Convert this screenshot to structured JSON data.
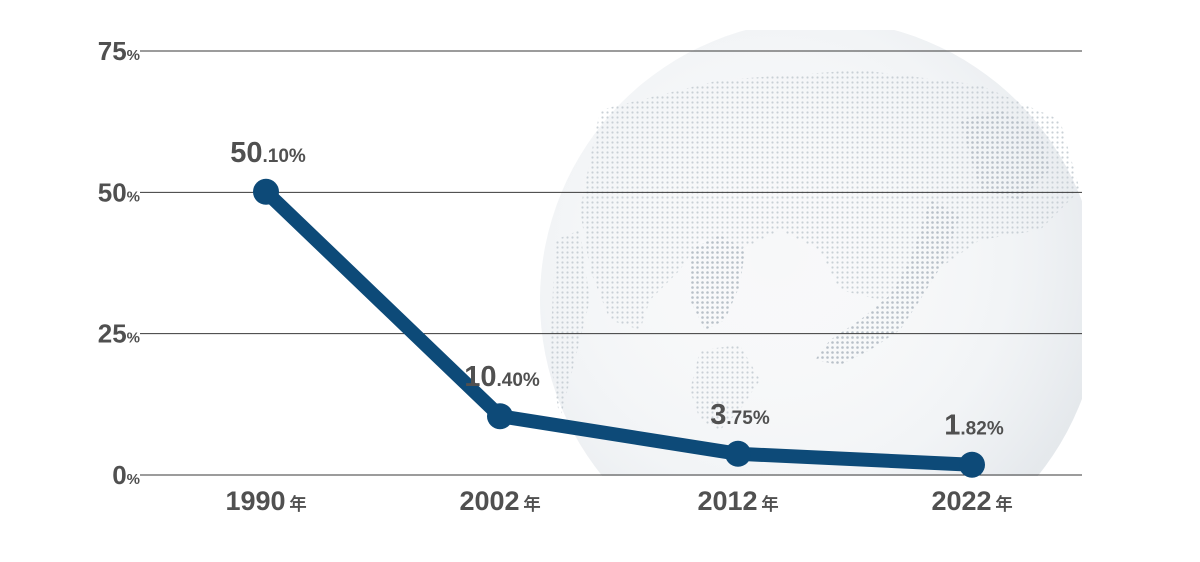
{
  "chart_data": {
    "type": "line",
    "categories": [
      "1990",
      "2002",
      "2012",
      "2022"
    ],
    "x_unit": "年",
    "series": [
      {
        "values": [
          50.1,
          10.4,
          3.75,
          1.82
        ],
        "data_labels": [
          "50.10",
          "10.40",
          "3.75",
          "1.82"
        ]
      }
    ],
    "value_unit": "%",
    "ylim": [
      0,
      75
    ],
    "yticks": [
      0,
      25,
      50,
      75
    ],
    "ytick_labels": [
      "0",
      "25",
      "50",
      "75"
    ],
    "grid": true,
    "legend": "none",
    "title": "",
    "xlabel": "",
    "ylabel": "",
    "colors": {
      "line": "#0d4a78",
      "marker": "#0d4a78",
      "text": "#505050",
      "grid": "#3a3a3a"
    },
    "background_image": "globe-east-asia-dotted"
  }
}
